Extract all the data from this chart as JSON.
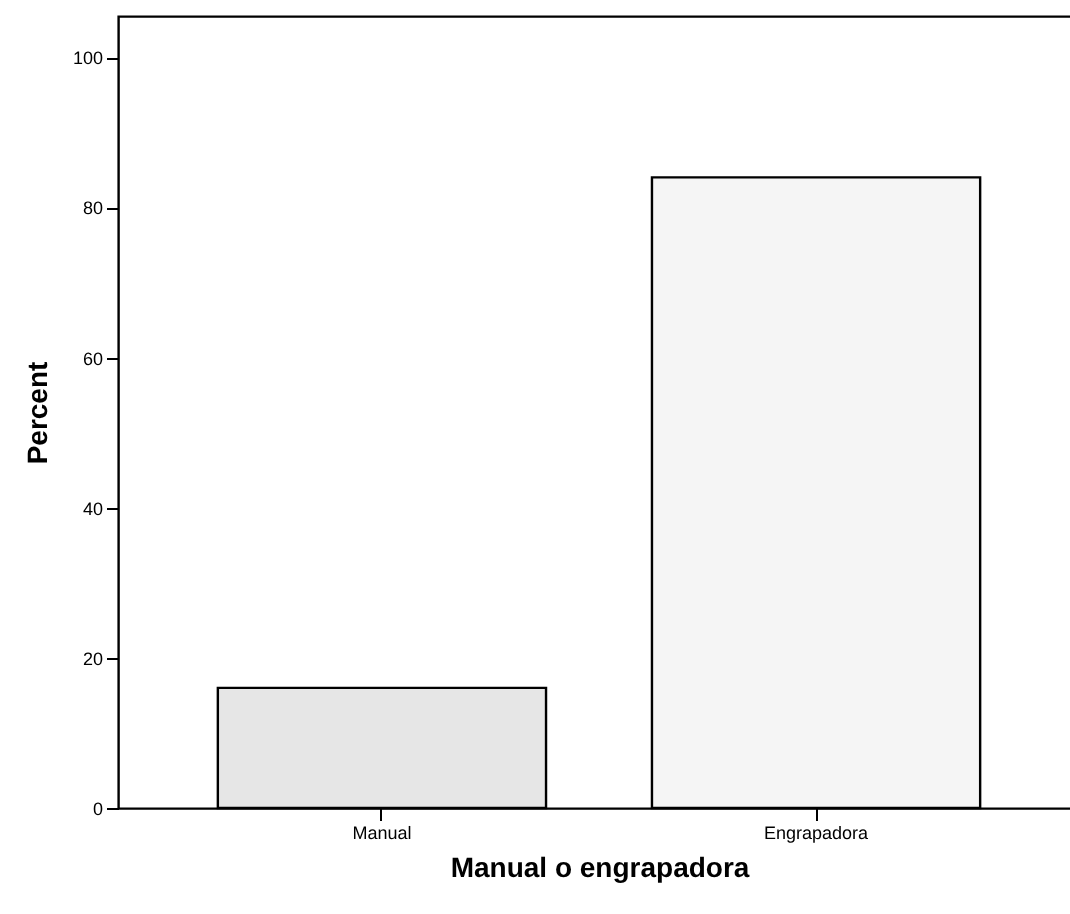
{
  "chart_data": {
    "type": "bar",
    "xlabel": "Manual o engrapadora",
    "ylabel": "Percent",
    "categories": [
      "Manual",
      "Engrapadora"
    ],
    "values": [
      16,
      84
    ],
    "colors": [
      "#e6e6e6",
      "#f5f5f5"
    ],
    "ylim": [
      0,
      105.5
    ],
    "yticks": [
      0,
      20,
      40,
      60,
      80,
      100
    ],
    "grid": false
  }
}
